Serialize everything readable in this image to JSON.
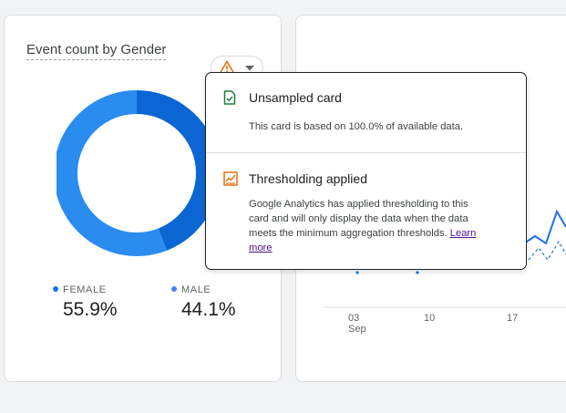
{
  "left_card": {
    "title": "Event count by Gender",
    "chart_data": {
      "type": "pie",
      "variant": "donut",
      "categories": [
        "FEMALE",
        "MALE"
      ],
      "values": [
        55.9,
        44.1
      ],
      "value_labels": [
        "55.9%",
        "44.1%"
      ],
      "colors": [
        "#2b8cf0",
        "#0b66d3"
      ]
    }
  },
  "right_card": {
    "chart_data": {
      "type": "line",
      "x_tick_labels": [
        "03",
        "10",
        "17"
      ],
      "x_sublabel": "Sep"
    }
  },
  "popover": {
    "sections": [
      {
        "icon": "unsampled-card-icon",
        "title": "Unsampled card",
        "body": "This card is based on 100.0% of available data."
      },
      {
        "icon": "thresholding-icon",
        "title": "Thresholding applied",
        "body_lines": [
          "Google Analytics has applied thresholding to this",
          "card and will only display the data when the data",
          "meets the minimum aggregation thresholds."
        ],
        "link_part1": "Learn",
        "link_part2": "more"
      }
    ]
  },
  "colors": {
    "accent_blue": "#1a73e8",
    "warning_orange": "#e8710a",
    "success_green": "#188038"
  }
}
